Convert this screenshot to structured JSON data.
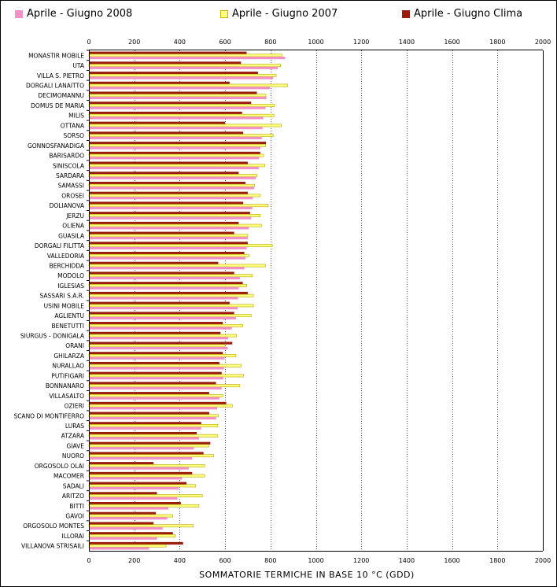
{
  "legend": [
    {
      "label": "Aprile - Giugno 2008",
      "color": "#f291c8"
    },
    {
      "label": "Aprile - Giugno 2007",
      "color": "#ffff80"
    },
    {
      "label": "Aprile - Giugno Clima",
      "color": "#9a1c0c"
    }
  ],
  "chart_data": {
    "type": "bar",
    "orientation": "horizontal",
    "xlabel": "SOMMATORIE TERMICHE IN BASE 10 °C (GDD)",
    "xlim": [
      0,
      2000
    ],
    "xticks": [
      0,
      200,
      400,
      600,
      800,
      1000,
      1200,
      1400,
      1600,
      1800,
      2000
    ],
    "grid": true,
    "legend_position": "top",
    "categories": [
      "MONASTIR MOBILE",
      "UTA",
      "VILLA S. PIETRO",
      "DORGALI LANAITTO",
      "DECIMOMANNU",
      "DOMUS DE MARIA",
      "MILIS",
      "OTTANA",
      "SORSO",
      "GONNOSFANADIGA",
      "BARISARDO",
      "SINISCOLA",
      "SARDARA",
      "SAMASSI",
      "OROSEI",
      "DOLIANOVA",
      "JERZU",
      "OLIENA",
      "GUASILA",
      "DORGALI FILITTA",
      "VALLEDORIA",
      "BERCHIDDA",
      "MODOLO",
      "IGLESIAS",
      "SASSARI S.A.R.",
      "USINI MOBILE",
      "AGLIENTU",
      "BENETUTTI",
      "SIURGUS - DONIGALA",
      "ORANI",
      "GHILARZA",
      "NURALLAO",
      "PUTIFIGARI",
      "BONNANARO",
      "VILLASALTO",
      "OZIERI",
      "SCANO DI MONTIFERRO",
      "LURAS",
      "ATZARA",
      "GIAVE",
      "NUORO",
      "ORGOSOLO OLAI",
      "MACOMER",
      "SADALI",
      "ARITZO",
      "BITTI",
      "GAVOI",
      "ORGOSOLO MONTES",
      "ILLORAI",
      "VILLANOVA STRISAILI"
    ],
    "series": [
      {
        "name": "Aprile - Giugno 2008",
        "color": "#f291c8",
        "values": [
          865,
          832,
          812,
          797,
          782,
          778,
          768,
          765,
          762,
          755,
          750,
          748,
          735,
          728,
          722,
          720,
          715,
          705,
          700,
          695,
          690,
          685,
          665,
          660,
          657,
          655,
          648,
          630,
          613,
          612,
          598,
          595,
          592,
          585,
          575,
          565,
          560,
          495,
          485,
          462,
          455,
          440,
          410,
          395,
          390,
          350,
          345,
          325,
          300,
          265
        ]
      },
      {
        "name": "Aprile - Giugno 2007",
        "color": "#ffff80",
        "values": [
          850,
          845,
          825,
          875,
          780,
          818,
          815,
          848,
          812,
          778,
          770,
          775,
          740,
          730,
          755,
          790,
          755,
          760,
          700,
          808,
          705,
          778,
          720,
          695,
          725,
          725,
          715,
          678,
          650,
          600,
          648,
          670,
          682,
          665,
          590,
          632,
          570,
          568,
          568,
          528,
          550,
          510,
          510,
          470,
          500,
          485,
          370,
          460,
          380,
          340
        ]
      },
      {
        "name": "Aprile - Giugno Clima",
        "color": "#9a1c0c",
        "values": [
          695,
          670,
          745,
          620,
          740,
          715,
          675,
          600,
          680,
          780,
          755,
          700,
          660,
          690,
          700,
          680,
          710,
          660,
          640,
          700,
          685,
          570,
          640,
          678,
          700,
          620,
          640,
          590,
          580,
          632,
          590,
          575,
          585,
          560,
          530,
          605,
          530,
          495,
          475,
          535,
          505,
          285,
          455,
          430,
          300,
          405,
          295,
          285,
          370,
          415
        ]
      }
    ]
  }
}
